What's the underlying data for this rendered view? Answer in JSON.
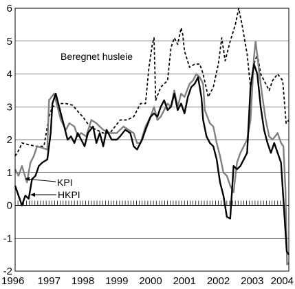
{
  "chart_data": {
    "type": "line",
    "title": "",
    "xlabel": "",
    "ylabel": "",
    "xlim": [
      1996.0,
      2004.08
    ],
    "ylim": [
      -2,
      6
    ],
    "x_ticks": [
      1996,
      1997,
      1998,
      1999,
      2000,
      2001,
      2002,
      2003,
      2004
    ],
    "y_ticks": [
      -2,
      -1,
      0,
      1,
      2,
      3,
      4,
      5,
      6
    ],
    "grid": "horizontal",
    "annotations": [
      {
        "text": "Beregnet husleie",
        "series": "Beregnet husleie"
      },
      {
        "text": "KPI",
        "series": "KPI"
      },
      {
        "text": "HKPI",
        "series": "HKPI"
      }
    ],
    "series": [
      {
        "name": "Beregnet husleie",
        "color": "#000000",
        "style": "dashed",
        "points": [
          [
            1996.0,
            1.5
          ],
          [
            1996.12,
            1.7
          ],
          [
            1996.2,
            1.9
          ],
          [
            1996.4,
            1.85
          ],
          [
            1996.6,
            1.8
          ],
          [
            1996.85,
            1.8
          ],
          [
            1997.0,
            2.7
          ],
          [
            1997.1,
            3.0
          ],
          [
            1997.3,
            3.1
          ],
          [
            1997.5,
            3.1
          ],
          [
            1997.7,
            3.05
          ],
          [
            1997.9,
            2.8
          ],
          [
            1998.0,
            2.7
          ],
          [
            1998.2,
            2.4
          ],
          [
            1998.4,
            2.3
          ],
          [
            1998.6,
            2.2
          ],
          [
            1998.8,
            2.2
          ],
          [
            1998.95,
            2.4
          ],
          [
            1999.1,
            2.6
          ],
          [
            1999.3,
            2.6
          ],
          [
            1999.5,
            2.7
          ],
          [
            1999.7,
            3.1
          ],
          [
            1999.85,
            3.1
          ],
          [
            1999.95,
            4.2
          ],
          [
            2000.05,
            4.9
          ],
          [
            2000.1,
            5.1
          ],
          [
            2000.15,
            3.2
          ],
          [
            2000.3,
            3.6
          ],
          [
            2000.5,
            3.8
          ],
          [
            2000.6,
            4.8
          ],
          [
            2000.7,
            5.1
          ],
          [
            2000.8,
            4.9
          ],
          [
            2000.9,
            5.4
          ],
          [
            2000.95,
            5.2
          ],
          [
            2001.0,
            4.7
          ],
          [
            2001.15,
            4.2
          ],
          [
            2001.3,
            4.3
          ],
          [
            2001.45,
            4.3
          ],
          [
            2001.55,
            4.0
          ],
          [
            2001.7,
            3.3
          ],
          [
            2001.85,
            3.6
          ],
          [
            2002.0,
            4.3
          ],
          [
            2002.1,
            5.1
          ],
          [
            2002.2,
            4.4
          ],
          [
            2002.35,
            5.0
          ],
          [
            2002.5,
            5.5
          ],
          [
            2002.6,
            6.0
          ],
          [
            2002.7,
            5.5
          ],
          [
            2002.85,
            4.6
          ],
          [
            2002.95,
            3.6
          ],
          [
            2003.05,
            4.3
          ],
          [
            2003.15,
            4.6
          ],
          [
            2003.25,
            4.0
          ],
          [
            2003.35,
            3.8
          ],
          [
            2003.5,
            3.5
          ],
          [
            2003.6,
            3.8
          ],
          [
            2003.75,
            4.0
          ],
          [
            2003.9,
            3.8
          ],
          [
            2004.0,
            2.5
          ],
          [
            2004.08,
            2.6
          ]
        ]
      },
      {
        "name": "KPI",
        "color": "#808080",
        "style": "solid",
        "points": [
          [
            1996.0,
            1.1
          ],
          [
            1996.1,
            0.9
          ],
          [
            1996.2,
            1.2
          ],
          [
            1996.35,
            0.7
          ],
          [
            1996.45,
            1.3
          ],
          [
            1996.55,
            1.5
          ],
          [
            1996.65,
            1.8
          ],
          [
            1996.8,
            1.75
          ],
          [
            1996.95,
            1.7
          ],
          [
            1997.0,
            3.2
          ],
          [
            1997.15,
            3.4
          ],
          [
            1997.25,
            3.0
          ],
          [
            1997.35,
            2.6
          ],
          [
            1997.5,
            2.3
          ],
          [
            1997.6,
            2.5
          ],
          [
            1997.75,
            2.4
          ],
          [
            1997.85,
            2.1
          ],
          [
            1997.95,
            2.2
          ],
          [
            1998.1,
            2.1
          ],
          [
            1998.25,
            2.6
          ],
          [
            1998.4,
            2.5
          ],
          [
            1998.6,
            2.3
          ],
          [
            1998.8,
            2.2
          ],
          [
            1999.0,
            2.2
          ],
          [
            1999.2,
            2.4
          ],
          [
            1999.35,
            2.3
          ],
          [
            1999.5,
            2.2
          ],
          [
            1999.6,
            1.9
          ],
          [
            1999.7,
            1.9
          ],
          [
            1999.85,
            2.4
          ],
          [
            2000.0,
            2.7
          ],
          [
            2000.1,
            3.0
          ],
          [
            2000.2,
            2.6
          ],
          [
            2000.3,
            2.7
          ],
          [
            2000.4,
            2.9
          ],
          [
            2000.5,
            3.1
          ],
          [
            2000.6,
            3.0
          ],
          [
            2000.7,
            3.5
          ],
          [
            2000.8,
            3.0
          ],
          [
            2000.9,
            3.4
          ],
          [
            2001.0,
            3.3
          ],
          [
            2001.15,
            3.7
          ],
          [
            2001.25,
            3.8
          ],
          [
            2001.35,
            4.0
          ],
          [
            2001.45,
            3.9
          ],
          [
            2001.55,
            3.7
          ],
          [
            2001.6,
            2.9
          ],
          [
            2001.75,
            2.5
          ],
          [
            2001.85,
            2.4
          ],
          [
            2001.95,
            1.9
          ],
          [
            2002.05,
            1.5
          ],
          [
            2002.15,
            1.0
          ],
          [
            2002.25,
            0.9
          ],
          [
            2002.35,
            0.6
          ],
          [
            2002.45,
            0.4
          ],
          [
            2002.55,
            1.3
          ],
          [
            2002.65,
            1.6
          ],
          [
            2002.75,
            1.8
          ],
          [
            2002.85,
            2.0
          ],
          [
            2002.95,
            2.6
          ],
          [
            2003.05,
            4.5
          ],
          [
            2003.1,
            5.0
          ],
          [
            2003.2,
            4.1
          ],
          [
            2003.3,
            3.3
          ],
          [
            2003.4,
            2.6
          ],
          [
            2003.5,
            2.1
          ],
          [
            2003.6,
            2.0
          ],
          [
            2003.75,
            2.2
          ],
          [
            2003.85,
            1.9
          ],
          [
            2003.92,
            1.8
          ],
          [
            2003.98,
            0.5
          ],
          [
            2004.03,
            -1.8
          ],
          [
            2004.08,
            -1.75
          ]
        ]
      },
      {
        "name": "HKPI",
        "color": "#000000",
        "style": "solid",
        "points": [
          [
            1996.0,
            0.6
          ],
          [
            1996.1,
            0.3
          ],
          [
            1996.2,
            0.0
          ],
          [
            1996.3,
            0.3
          ],
          [
            1996.4,
            0.2
          ],
          [
            1996.5,
            0.8
          ],
          [
            1996.6,
            0.9
          ],
          [
            1996.7,
            1.2
          ],
          [
            1996.8,
            1.3
          ],
          [
            1996.95,
            1.4
          ],
          [
            1997.05,
            2.2
          ],
          [
            1997.1,
            3.1
          ],
          [
            1997.2,
            3.4
          ],
          [
            1997.3,
            3.0
          ],
          [
            1997.45,
            2.4
          ],
          [
            1997.55,
            2.0
          ],
          [
            1997.65,
            2.1
          ],
          [
            1997.75,
            1.9
          ],
          [
            1997.85,
            2.2
          ],
          [
            1997.95,
            2.0
          ],
          [
            1998.05,
            1.8
          ],
          [
            1998.15,
            2.2
          ],
          [
            1998.3,
            2.4
          ],
          [
            1998.4,
            1.9
          ],
          [
            1998.5,
            2.2
          ],
          [
            1998.6,
            1.8
          ],
          [
            1998.7,
            2.3
          ],
          [
            1998.85,
            2.0
          ],
          [
            1999.0,
            2.0
          ],
          [
            1999.1,
            2.1
          ],
          [
            1999.25,
            2.3
          ],
          [
            1999.4,
            2.2
          ],
          [
            1999.5,
            1.8
          ],
          [
            1999.6,
            1.7
          ],
          [
            1999.75,
            2.0
          ],
          [
            1999.85,
            2.3
          ],
          [
            2000.0,
            2.7
          ],
          [
            2000.1,
            2.8
          ],
          [
            2000.2,
            2.7
          ],
          [
            2000.3,
            3.0
          ],
          [
            2000.4,
            3.2
          ],
          [
            2000.5,
            2.9
          ],
          [
            2000.6,
            3.0
          ],
          [
            2000.7,
            3.4
          ],
          [
            2000.8,
            2.9
          ],
          [
            2000.9,
            3.1
          ],
          [
            2001.0,
            2.8
          ],
          [
            2001.1,
            3.3
          ],
          [
            2001.2,
            3.6
          ],
          [
            2001.3,
            3.7
          ],
          [
            2001.4,
            3.9
          ],
          [
            2001.5,
            3.3
          ],
          [
            2001.55,
            2.6
          ],
          [
            2001.65,
            2.1
          ],
          [
            2001.75,
            1.9
          ],
          [
            2001.85,
            1.8
          ],
          [
            2001.95,
            1.4
          ],
          [
            2002.05,
            0.7
          ],
          [
            2002.15,
            0.3
          ],
          [
            2002.25,
            -0.35
          ],
          [
            2002.35,
            -0.4
          ],
          [
            2002.45,
            1.2
          ],
          [
            2002.55,
            1.1
          ],
          [
            2002.65,
            1.2
          ],
          [
            2002.75,
            1.4
          ],
          [
            2002.85,
            1.6
          ],
          [
            2002.95,
            3.6
          ],
          [
            2003.05,
            4.3
          ],
          [
            2003.15,
            4.0
          ],
          [
            2003.25,
            3.0
          ],
          [
            2003.35,
            2.3
          ],
          [
            2003.45,
            1.9
          ],
          [
            2003.55,
            1.6
          ],
          [
            2003.65,
            1.9
          ],
          [
            2003.75,
            1.6
          ],
          [
            2003.85,
            1.3
          ],
          [
            2003.95,
            -0.3
          ],
          [
            2004.02,
            -1.4
          ],
          [
            2004.08,
            -1.5
          ]
        ]
      }
    ]
  }
}
